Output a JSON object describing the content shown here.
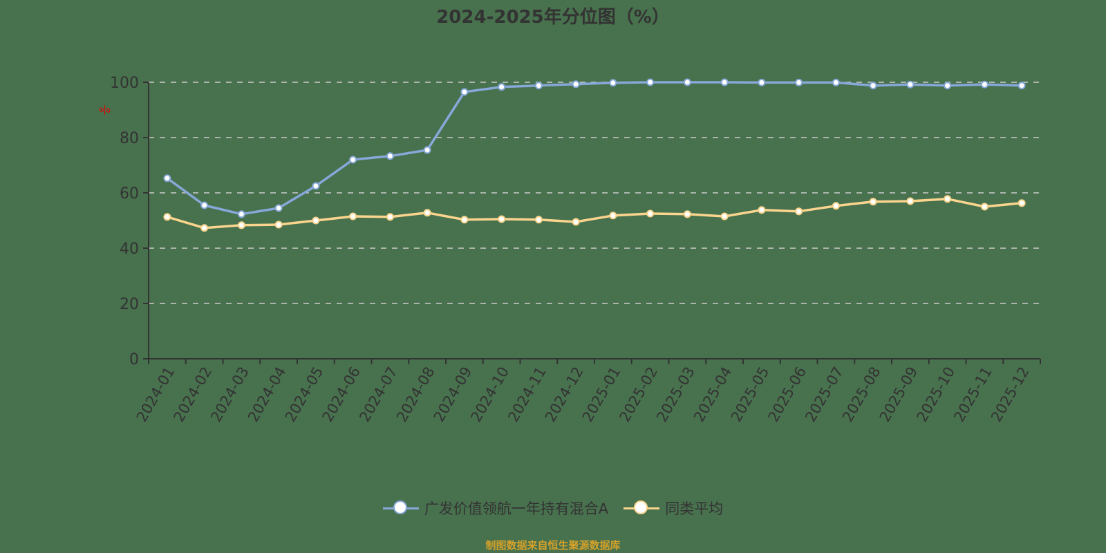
{
  "title": "2024-2025年分位图（%）",
  "y_unit_label": "%",
  "footer": "制图数据来自恒生聚源数据库",
  "colors": {
    "background": "#48714e",
    "series_fund": "#87a8d8",
    "series_avg": "#fbd58e",
    "axis": "#333333",
    "grid": "#cccccc",
    "unit_label": "#e00000",
    "footer": "#d4a12a"
  },
  "legend": [
    {
      "label": "广发价值领航一年持有混合A",
      "color": "#87a8d8"
    },
    {
      "label": "同类平均",
      "color": "#fbd58e"
    }
  ],
  "chart_data": {
    "type": "line",
    "title": "2024-2025年分位图（%）",
    "xlabel": "",
    "ylabel": "%",
    "ylim": [
      0,
      100
    ],
    "yticks": [
      0,
      20,
      40,
      60,
      80,
      100
    ],
    "grid": true,
    "legend_position": "bottom",
    "categories": [
      "2024-01",
      "2024-02",
      "2024-03",
      "2024-04",
      "2024-05",
      "2024-06",
      "2024-07",
      "2024-08",
      "2024-09",
      "2024-10",
      "2024-11",
      "2024-12",
      "2025-01",
      "2025-02",
      "2025-03",
      "2025-04",
      "2025-05",
      "2025-06",
      "2025-07",
      "2025-08",
      "2025-09",
      "2025-10",
      "2025-11",
      "2025-12"
    ],
    "series": [
      {
        "name": "广发价值领航一年持有混合A",
        "color": "#87a8d8",
        "values": [
          65.3,
          55.5,
          52.3,
          54.5,
          62.5,
          72.0,
          73.3,
          75.5,
          96.5,
          98.3,
          98.8,
          99.3,
          99.8,
          100,
          100,
          100,
          99.9,
          99.9,
          99.9,
          98.8,
          99.2,
          98.8,
          99.2,
          98.8
        ]
      },
      {
        "name": "同类平均",
        "color": "#fbd58e",
        "values": [
          51.3,
          47.3,
          48.3,
          48.5,
          50.0,
          51.5,
          51.3,
          52.8,
          50.3,
          50.5,
          50.3,
          49.5,
          51.8,
          52.5,
          52.3,
          51.5,
          53.8,
          53.3,
          55.3,
          56.8,
          57.0,
          57.8,
          55.0,
          56.3
        ]
      }
    ]
  }
}
